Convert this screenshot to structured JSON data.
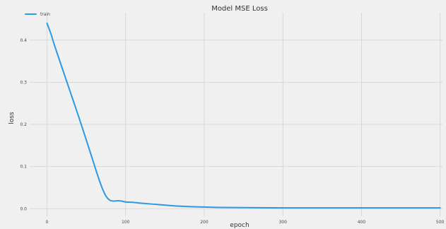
{
  "chart_data": {
    "type": "line",
    "title": "Model MSE Loss",
    "xlabel": "epoch",
    "ylabel": "loss",
    "xlim": [
      -22,
      503
    ],
    "ylim": [
      -0.018,
      0.465
    ],
    "grid": true,
    "legend_position": "top-left",
    "x_ticks": [
      0,
      100,
      200,
      300,
      400,
      500
    ],
    "y_ticks": [
      0.0,
      0.1,
      0.2,
      0.3,
      0.4
    ],
    "x_tick_labels": [
      "0",
      "100",
      "200",
      "300",
      "400",
      "500"
    ],
    "y_tick_labels": [
      "0.0",
      "0.1",
      "0.2",
      "0.3",
      "0.4"
    ],
    "series": [
      {
        "name": "train",
        "color": "#2b9ae0",
        "x": [
          0,
          5,
          10,
          20,
          30,
          40,
          50,
          60,
          65,
          70,
          75,
          80,
          85,
          90,
          95,
          100,
          110,
          120,
          140,
          160,
          180,
          200,
          220,
          250,
          300,
          350,
          400,
          450,
          500
        ],
        "y": [
          0.44,
          0.415,
          0.385,
          0.33,
          0.275,
          0.22,
          0.163,
          0.105,
          0.076,
          0.05,
          0.03,
          0.02,
          0.018,
          0.019,
          0.018,
          0.016,
          0.015,
          0.013,
          0.01,
          0.007,
          0.005,
          0.004,
          0.003,
          0.0025,
          0.002,
          0.002,
          0.002,
          0.002,
          0.002
        ]
      }
    ]
  }
}
